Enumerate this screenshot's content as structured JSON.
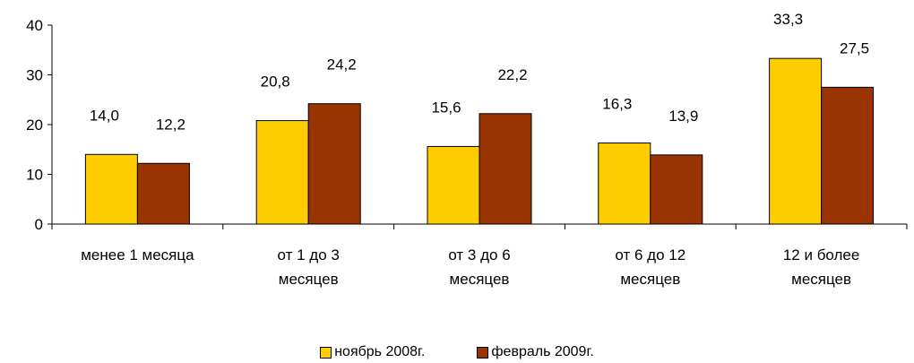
{
  "colors": {
    "series_1": "#FFCC00",
    "series_2": "#993300",
    "axis": "#000000",
    "bar_border": "#000000"
  },
  "chart_data": {
    "type": "bar",
    "categories": [
      [
        "менее 1 месяца"
      ],
      [
        "от 1 до 3",
        "месяцев"
      ],
      [
        "от 3 до 6",
        "месяцев"
      ],
      [
        "от 6 до 12",
        "месяцев"
      ],
      [
        "12 и более",
        "месяцев"
      ]
    ],
    "series": [
      {
        "name": "ноябрь 2008г.",
        "values": [
          14.0,
          20.8,
          15.6,
          16.3,
          33.3
        ],
        "labels": [
          "14,0",
          "20,8",
          "15,6",
          "16,3",
          "33,3"
        ]
      },
      {
        "name": "февраль 2009г.",
        "values": [
          12.2,
          24.2,
          22.2,
          13.9,
          27.5
        ],
        "labels": [
          "12,2",
          "24,2",
          "22,2",
          "13,9",
          "27,5"
        ]
      }
    ],
    "ylim": [
      0,
      40
    ],
    "yticks": [
      0,
      10,
      20,
      30,
      40
    ],
    "grid": false,
    "legend_position": "bottom"
  }
}
